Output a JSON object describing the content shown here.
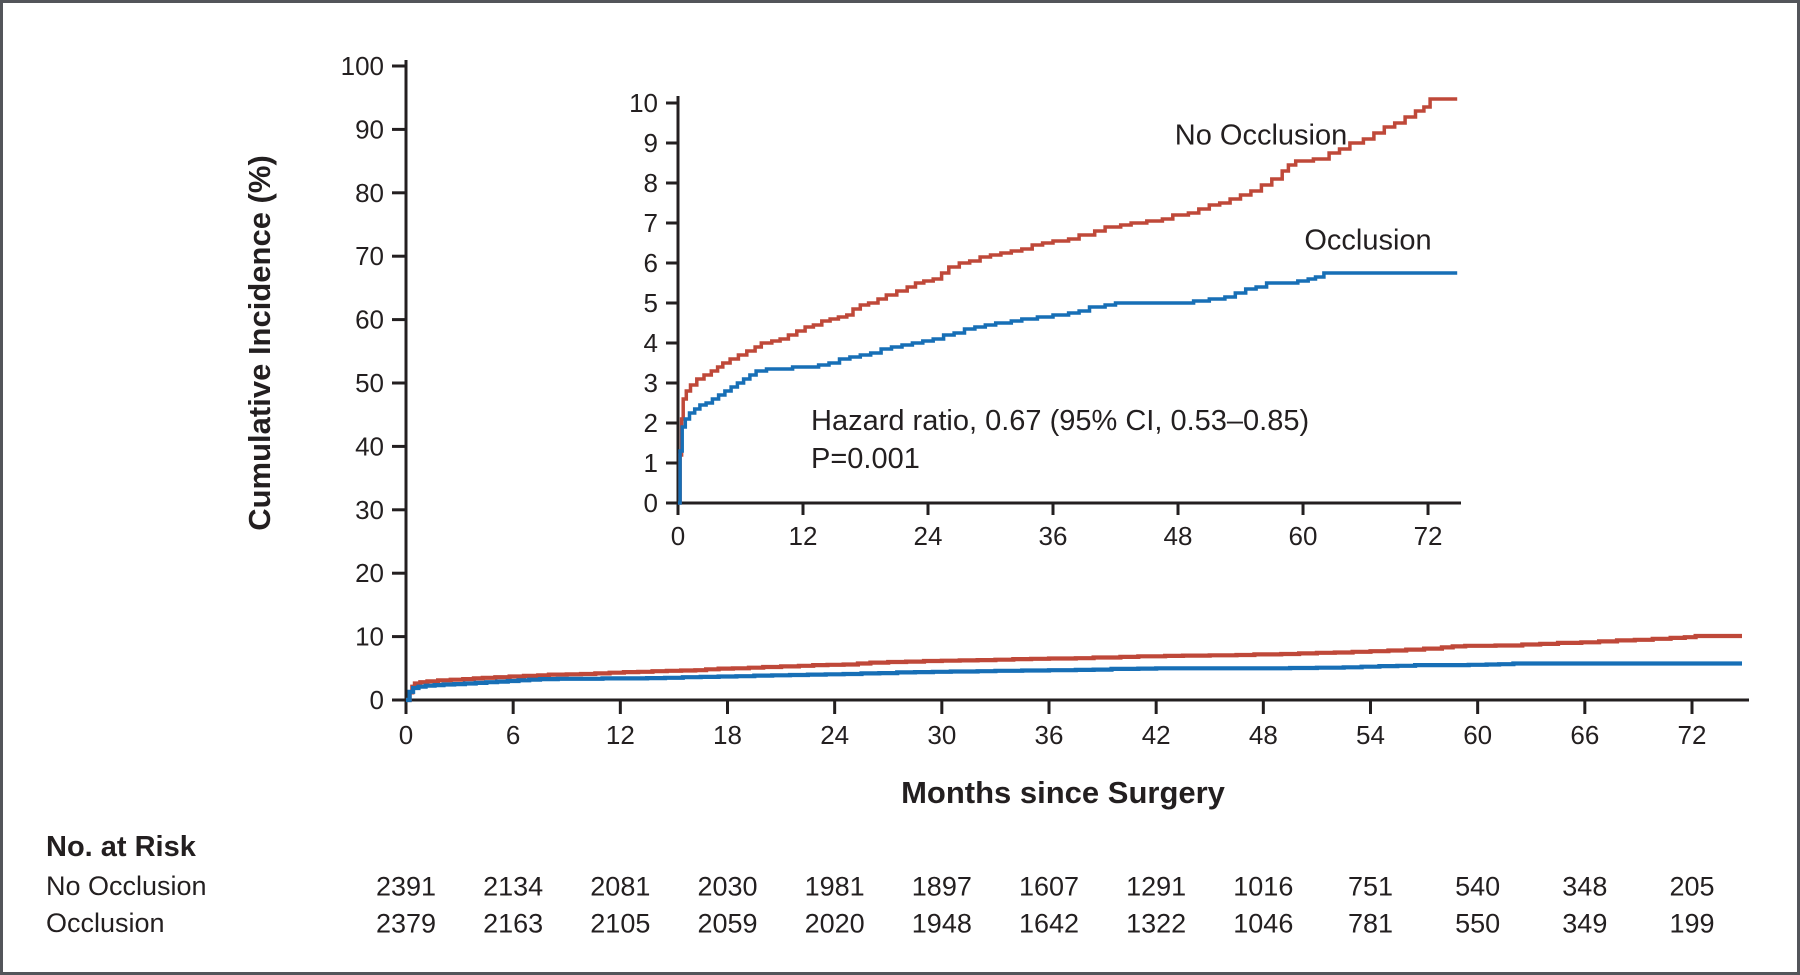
{
  "figure": {
    "background": "#ffffff",
    "border_color": "#53555a",
    "text_color": "#231f20"
  },
  "chart_data": {
    "type": "line",
    "subtype": "step-cumulative-incidence-with-inset",
    "title": "",
    "xlabel": "Months since Surgery",
    "ylabel": "Cumulative Incidence (%)",
    "main_axis": {
      "x_ticks": [
        0,
        6,
        12,
        18,
        24,
        30,
        36,
        42,
        48,
        54,
        60,
        66,
        72
      ],
      "y_ticks": [
        0,
        10,
        20,
        30,
        40,
        50,
        60,
        70,
        80,
        90,
        100
      ],
      "x_range": [
        0,
        74.8
      ],
      "y_range": [
        0,
        100
      ],
      "grid": false
    },
    "inset_axis": {
      "x_ticks": [
        0,
        12,
        24,
        36,
        48,
        60,
        72
      ],
      "y_ticks": [
        0,
        1,
        2,
        3,
        4,
        5,
        6,
        7,
        8,
        9,
        10
      ],
      "x_range": [
        0,
        74.8
      ],
      "y_range": [
        0,
        10
      ],
      "grid": false
    },
    "annotation": {
      "line1": "Hazard ratio, 0.67 (95% CI, 0.53–0.85)",
      "line2": "P=0.001",
      "hazard_ratio": "0.67",
      "ci_95": "0.53–0.85",
      "p_value": "0.001"
    },
    "series": [
      {
        "name": "No Occlusion",
        "color": "#bf4839",
        "end_month": 74.8,
        "points": [
          [
            0,
            0
          ],
          [
            0.2,
            1.2
          ],
          [
            0.35,
            2.1
          ],
          [
            0.5,
            2.6
          ],
          [
            0.8,
            2.8
          ],
          [
            1.2,
            2.95
          ],
          [
            1.8,
            3.1
          ],
          [
            2.5,
            3.2
          ],
          [
            3.2,
            3.3
          ],
          [
            3.8,
            3.4
          ],
          [
            4.3,
            3.5
          ],
          [
            5,
            3.6
          ],
          [
            5.8,
            3.7
          ],
          [
            6.6,
            3.8
          ],
          [
            7.4,
            3.9
          ],
          [
            8,
            4.0
          ],
          [
            9,
            4.05
          ],
          [
            9.8,
            4.1
          ],
          [
            10.6,
            4.2
          ],
          [
            11.4,
            4.3
          ],
          [
            12.2,
            4.4
          ],
          [
            13,
            4.45
          ],
          [
            13.8,
            4.55
          ],
          [
            14.6,
            4.6
          ],
          [
            15.4,
            4.65
          ],
          [
            16.2,
            4.7
          ],
          [
            16.8,
            4.85
          ],
          [
            17.5,
            4.95
          ],
          [
            18.3,
            5.0
          ],
          [
            19.2,
            5.1
          ],
          [
            20,
            5.2
          ],
          [
            21,
            5.3
          ],
          [
            22,
            5.4
          ],
          [
            22.8,
            5.5
          ],
          [
            23.6,
            5.55
          ],
          [
            24.5,
            5.6
          ],
          [
            25.3,
            5.75
          ],
          [
            26,
            5.9
          ],
          [
            27,
            6.0
          ],
          [
            28,
            6.05
          ],
          [
            29,
            6.15
          ],
          [
            30,
            6.2
          ],
          [
            31,
            6.25
          ],
          [
            32,
            6.3
          ],
          [
            33,
            6.35
          ],
          [
            34,
            6.45
          ],
          [
            35,
            6.5
          ],
          [
            36,
            6.55
          ],
          [
            37.5,
            6.6
          ],
          [
            38.5,
            6.7
          ],
          [
            40,
            6.8
          ],
          [
            41,
            6.9
          ],
          [
            42.5,
            6.95
          ],
          [
            43.5,
            7.0
          ],
          [
            45,
            7.05
          ],
          [
            46.5,
            7.1
          ],
          [
            47.5,
            7.2
          ],
          [
            49,
            7.25
          ],
          [
            50,
            7.35
          ],
          [
            51,
            7.45
          ],
          [
            52,
            7.5
          ],
          [
            53,
            7.6
          ],
          [
            54,
            7.7
          ],
          [
            55,
            7.8
          ],
          [
            56,
            7.95
          ],
          [
            57,
            8.1
          ],
          [
            58,
            8.3
          ],
          [
            58.6,
            8.45
          ],
          [
            59.3,
            8.55
          ],
          [
            61,
            8.6
          ],
          [
            62.5,
            8.75
          ],
          [
            63.5,
            8.85
          ],
          [
            64.5,
            9.0
          ],
          [
            65.8,
            9.1
          ],
          [
            66.8,
            9.25
          ],
          [
            67.8,
            9.4
          ],
          [
            68.8,
            9.5
          ],
          [
            69.8,
            9.65
          ],
          [
            70.8,
            9.8
          ],
          [
            71.6,
            9.9
          ],
          [
            72.2,
            10.1
          ]
        ]
      },
      {
        "name": "Occlusion",
        "color": "#176fb6",
        "end_month": 74.8,
        "points": [
          [
            0,
            0
          ],
          [
            0.2,
            1.3
          ],
          [
            0.4,
            1.9
          ],
          [
            0.7,
            2.1
          ],
          [
            1.1,
            2.25
          ],
          [
            1.6,
            2.35
          ],
          [
            2.1,
            2.45
          ],
          [
            2.7,
            2.5
          ],
          [
            3.3,
            2.6
          ],
          [
            3.9,
            2.7
          ],
          [
            4.5,
            2.8
          ],
          [
            5.1,
            2.9
          ],
          [
            5.7,
            3.0
          ],
          [
            6.3,
            3.1
          ],
          [
            6.9,
            3.2
          ],
          [
            7.5,
            3.3
          ],
          [
            8.5,
            3.35
          ],
          [
            11,
            3.4
          ],
          [
            13.5,
            3.45
          ],
          [
            14.5,
            3.5
          ],
          [
            15.5,
            3.6
          ],
          [
            16.5,
            3.65
          ],
          [
            17.5,
            3.7
          ],
          [
            18.5,
            3.75
          ],
          [
            19.5,
            3.85
          ],
          [
            20.5,
            3.9
          ],
          [
            21.5,
            3.95
          ],
          [
            22.5,
            4.0
          ],
          [
            23.5,
            4.05
          ],
          [
            24.5,
            4.1
          ],
          [
            25.5,
            4.2
          ],
          [
            26.5,
            4.25
          ],
          [
            27.5,
            4.35
          ],
          [
            28.5,
            4.4
          ],
          [
            29.5,
            4.45
          ],
          [
            30.5,
            4.5
          ],
          [
            32,
            4.55
          ],
          [
            33,
            4.6
          ],
          [
            34.5,
            4.65
          ],
          [
            36,
            4.7
          ],
          [
            37.5,
            4.75
          ],
          [
            38.5,
            4.8
          ],
          [
            39.5,
            4.9
          ],
          [
            41,
            4.95
          ],
          [
            42,
            5.0
          ],
          [
            49.5,
            5.05
          ],
          [
            51,
            5.1
          ],
          [
            52.5,
            5.15
          ],
          [
            53.5,
            5.25
          ],
          [
            54.5,
            5.35
          ],
          [
            55.5,
            5.4
          ],
          [
            56.5,
            5.5
          ],
          [
            59.5,
            5.55
          ],
          [
            60.5,
            5.6
          ],
          [
            61.2,
            5.65
          ],
          [
            62,
            5.75
          ]
        ]
      }
    ]
  },
  "axis_titles": {
    "y": "Cumulative Incidence (%)",
    "x": "Months since Surgery"
  },
  "risk_table": {
    "header": "No. at Risk",
    "months": [
      0,
      6,
      12,
      18,
      24,
      30,
      36,
      42,
      48,
      54,
      60,
      66,
      72
    ],
    "rows": [
      {
        "label": "No Occlusion",
        "values": [
          "2391",
          "2134",
          "2081",
          "2030",
          "1981",
          "1897",
          "1607",
          "1291",
          "1016",
          "751",
          "540",
          "348",
          "205"
        ]
      },
      {
        "label": "Occlusion",
        "values": [
          "2379",
          "2163",
          "2105",
          "2059",
          "2020",
          "1948",
          "1642",
          "1322",
          "1046",
          "781",
          "550",
          "349",
          "199"
        ]
      }
    ]
  }
}
